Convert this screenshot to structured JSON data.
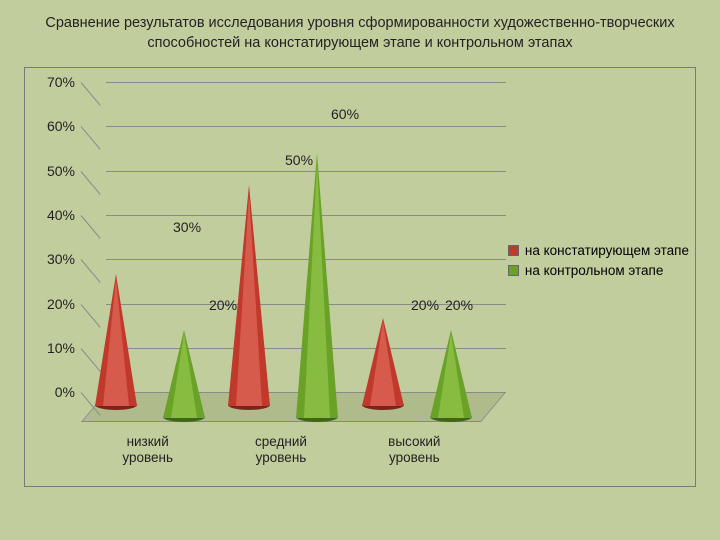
{
  "title": "Сравнение результатов исследования уровня сформированности художественно-творческих способностей на констатирующем этапе и контрольном этапах",
  "chart": {
    "type": "3d-cone-bar",
    "background_color": "#c2cd9e",
    "border_color": "#7a7a7a",
    "grid_color": "#8a8a8a",
    "y_axis": {
      "min": 0,
      "max": 70,
      "step": 10,
      "labels": [
        "0%",
        "10%",
        "20%",
        "30%",
        "40%",
        "50%",
        "60%",
        "70%"
      ],
      "fontsize": 14
    },
    "categories": [
      {
        "label": "низкий\nуровень"
      },
      {
        "label": "средний\nуровень"
      },
      {
        "label": "высокий\nуровень"
      }
    ],
    "series": [
      {
        "name": "на констатирующем этапе",
        "color": "#c0392b",
        "color_light": "#e97868",
        "color_dark": "#7d241a",
        "values": [
          30,
          50,
          20
        ],
        "labels": [
          "30%",
          "50%",
          "20%"
        ]
      },
      {
        "name": "на контрольном этапе",
        "color": "#6aa227",
        "color_light": "#9ed158",
        "color_dark": "#3f6615",
        "values": [
          20,
          60,
          20
        ],
        "labels": [
          "20%",
          "60%",
          "20%"
        ]
      }
    ],
    "label_fontsize": 14,
    "cat_label_fontsize": 13.5
  },
  "legend": {
    "fontsize": 13.5,
    "items": [
      {
        "label": "на констатирующем этапе",
        "color": "#c0392b"
      },
      {
        "label": "на контрольном этапе",
        "color": "#6aa227"
      }
    ]
  }
}
